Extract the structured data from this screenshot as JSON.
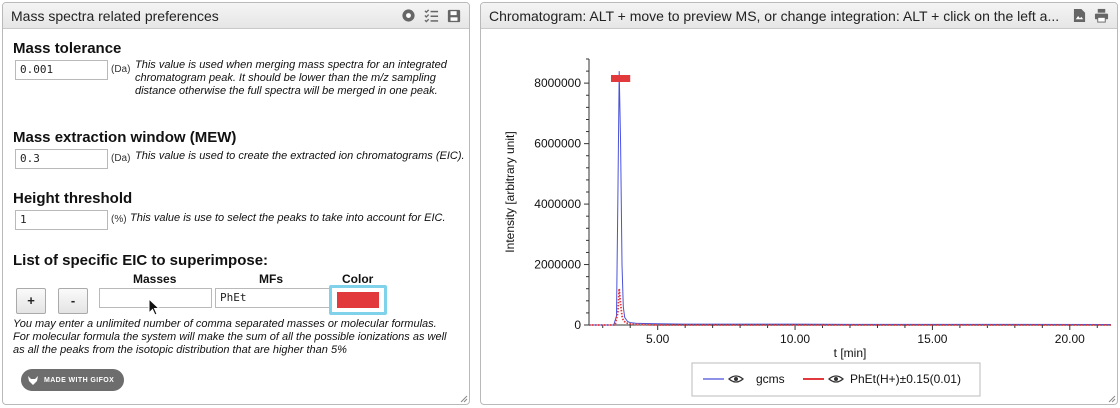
{
  "left_panel": {
    "title": "Mass spectra related preferences",
    "mass_tolerance": {
      "title": "Mass tolerance",
      "value": "0.001",
      "unit": "(Da)",
      "description": "This value is used when merging mass spectra for an integrated chromatogram peak. It should be lower than the m/z sampling distance otherwise the full spectra will be merged in one peak."
    },
    "mew": {
      "title": "Mass extraction window (MEW)",
      "value": "0.3",
      "unit": "(Da)",
      "description": "This value is used to create the extracted ion chromatograms (EIC)."
    },
    "height_threshold": {
      "title": "Height threshold",
      "value": "1",
      "unit": "(%)",
      "description": "This value is use to select the peaks to take into account for EIC."
    },
    "eic_list": {
      "title": "List of specific EIC to superimpose:",
      "col_masses": "Masses",
      "col_mfs": "MFs",
      "col_color": "Color",
      "add_label": "+",
      "remove_label": "-",
      "masses_value": "",
      "mfs_value": "PhEt",
      "color": "#e2393d",
      "help": "You may enter a unlimited number of comma separated masses or molecular formulas. For molecular formula the system will make the sum of all the possible ionizations as well as all the peaks from the isotopic distribution that are higher than 5%"
    },
    "badge": "MADE WITH GIFOX"
  },
  "right_panel": {
    "title": "Chromatogram: ALT + move to preview MS, or change integration: ALT + click on the left a..."
  },
  "chart_data": {
    "type": "line",
    "xlabel": "t [min]",
    "ylabel": "Intensity [arbitrary unit]",
    "xlim": [
      2.5,
      21.5
    ],
    "ylim": [
      0,
      8800000
    ],
    "x_ticks": [
      5,
      10,
      15,
      20
    ],
    "x_tick_labels": [
      "5.00",
      "10.00",
      "15.00",
      "20.00"
    ],
    "y_ticks": [
      0,
      2000000,
      4000000,
      6000000,
      8000000
    ],
    "y_tick_labels": [
      "0",
      "2000000",
      "4000000",
      "6000000",
      "8000000"
    ],
    "integration_bar": {
      "x_start": 3.3,
      "x_end": 4.0,
      "color": "#e2393d"
    },
    "series": [
      {
        "name": "gcms",
        "color": "#4a52d8",
        "style": "solid",
        "x": [
          2.5,
          3.4,
          3.5,
          3.55,
          3.6,
          3.65,
          3.7,
          3.75,
          3.8,
          3.9,
          4.0,
          4.2,
          4.5,
          5.0,
          6.0,
          8.0,
          10.0,
          12.0,
          15.0,
          18.0,
          21.5
        ],
        "y": [
          0,
          0,
          300000,
          4000000,
          8400000,
          6000000,
          2000000,
          600000,
          250000,
          120000,
          80000,
          60000,
          50000,
          40000,
          30000,
          30000,
          30000,
          20000,
          20000,
          20000,
          15000
        ]
      },
      {
        "name": "PhEt(H+)±0.15(0.01)",
        "color": "#e2393d",
        "style": "dotted",
        "x": [
          2.5,
          3.45,
          3.55,
          3.6,
          3.65,
          3.7,
          3.75,
          3.85,
          4.0,
          4.2,
          4.6,
          5.0,
          6.0,
          21.5
        ],
        "y": [
          0,
          0,
          400000,
          1200000,
          700000,
          300000,
          150000,
          70000,
          40000,
          20000,
          10000,
          0,
          0,
          0
        ]
      }
    ],
    "legend_position": "bottom",
    "grid": false
  }
}
